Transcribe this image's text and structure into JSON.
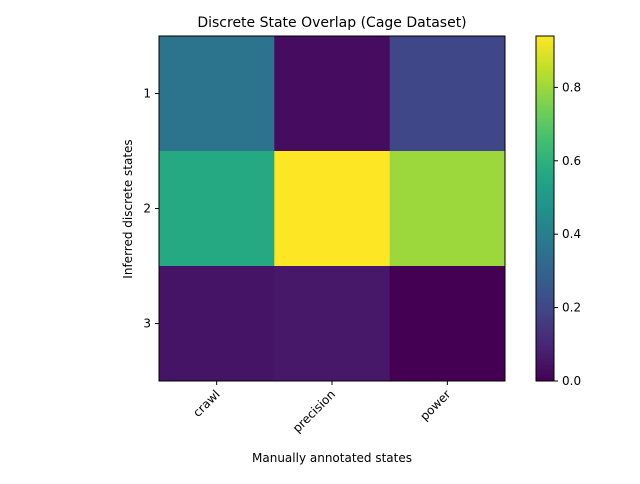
{
  "chart_data": {
    "type": "heatmap",
    "title": "Discrete State Overlap (Cage Dataset)",
    "xlabel": "Manually annotated states",
    "ylabel": "Inferred discrete states",
    "x_categories": [
      "crawl",
      "precision",
      "power"
    ],
    "y_categories": [
      "1",
      "2",
      "3"
    ],
    "values": [
      [
        0.36,
        0.03,
        0.2
      ],
      [
        0.57,
        0.94,
        0.8
      ],
      [
        0.05,
        0.06,
        0.0
      ]
    ],
    "colormap": "viridis",
    "color_range": [
      0,
      0.94
    ],
    "colorbar_ticks": [
      0.0,
      0.2,
      0.4,
      0.6,
      0.8
    ],
    "colorbar_tick_labels": [
      "0.0",
      "0.2",
      "0.4",
      "0.6",
      "0.8"
    ],
    "grid": false,
    "legend": "colorbar-right"
  }
}
